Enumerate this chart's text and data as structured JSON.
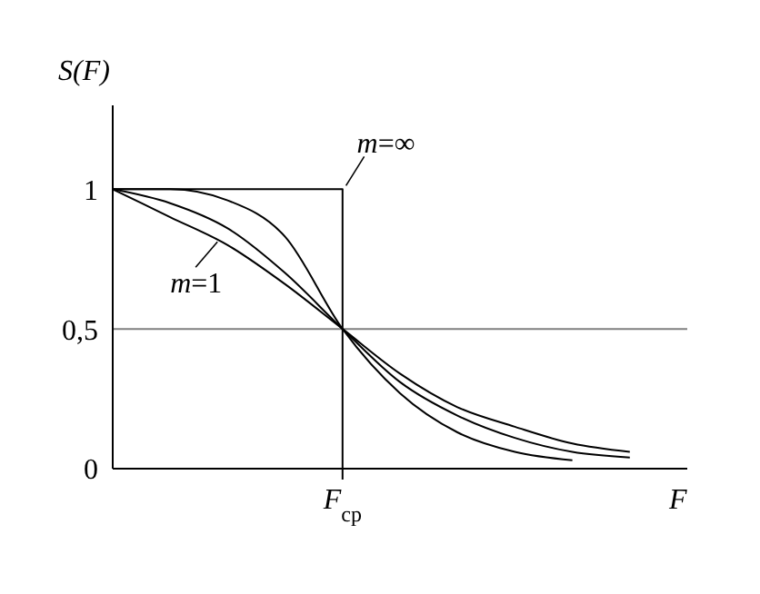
{
  "chart_data": {
    "type": "line",
    "xlabel": "F",
    "ylabel": "S(F)",
    "categories": [
      null,
      null,
      null,
      null,
      "F$_{cp}$",
      null,
      null,
      null,
      null,
      null,
      null
    ],
    "series": [
      {
        "name": "m=∞",
        "type": "step",
        "color": "#000000",
        "values": [
          1,
          1,
          1,
          1,
          0,
          null,
          null,
          null,
          null,
          null,
          null
        ]
      },
      {
        "color": "#000000",
        "values": [
          1,
          1,
          0.96,
          0.83,
          0.5,
          0.27,
          0.13,
          0.06,
          0.03,
          null,
          null
        ]
      },
      {
        "color": "#000000",
        "values": [
          1,
          0.95,
          0.86,
          0.7,
          0.5,
          0.31,
          0.19,
          0.11,
          0.06,
          0.04,
          null
        ]
      },
      {
        "name": "m=1",
        "color": "#000000",
        "values": [
          1,
          0.9,
          0.8,
          0.66,
          0.5,
          0.34,
          0.22,
          0.15,
          0.09,
          0.06,
          null
        ]
      }
    ],
    "ylim": [
      0,
      1.3
    ],
    "yticks": [
      0,
      {
        "value": 0.5,
        "label": "0,5"
      },
      1
    ],
    "ref_lines": [
      {
        "axis": "y",
        "value": 0.5,
        "color": "#808080"
      }
    ],
    "marker": "none",
    "line_style": "solid"
  }
}
